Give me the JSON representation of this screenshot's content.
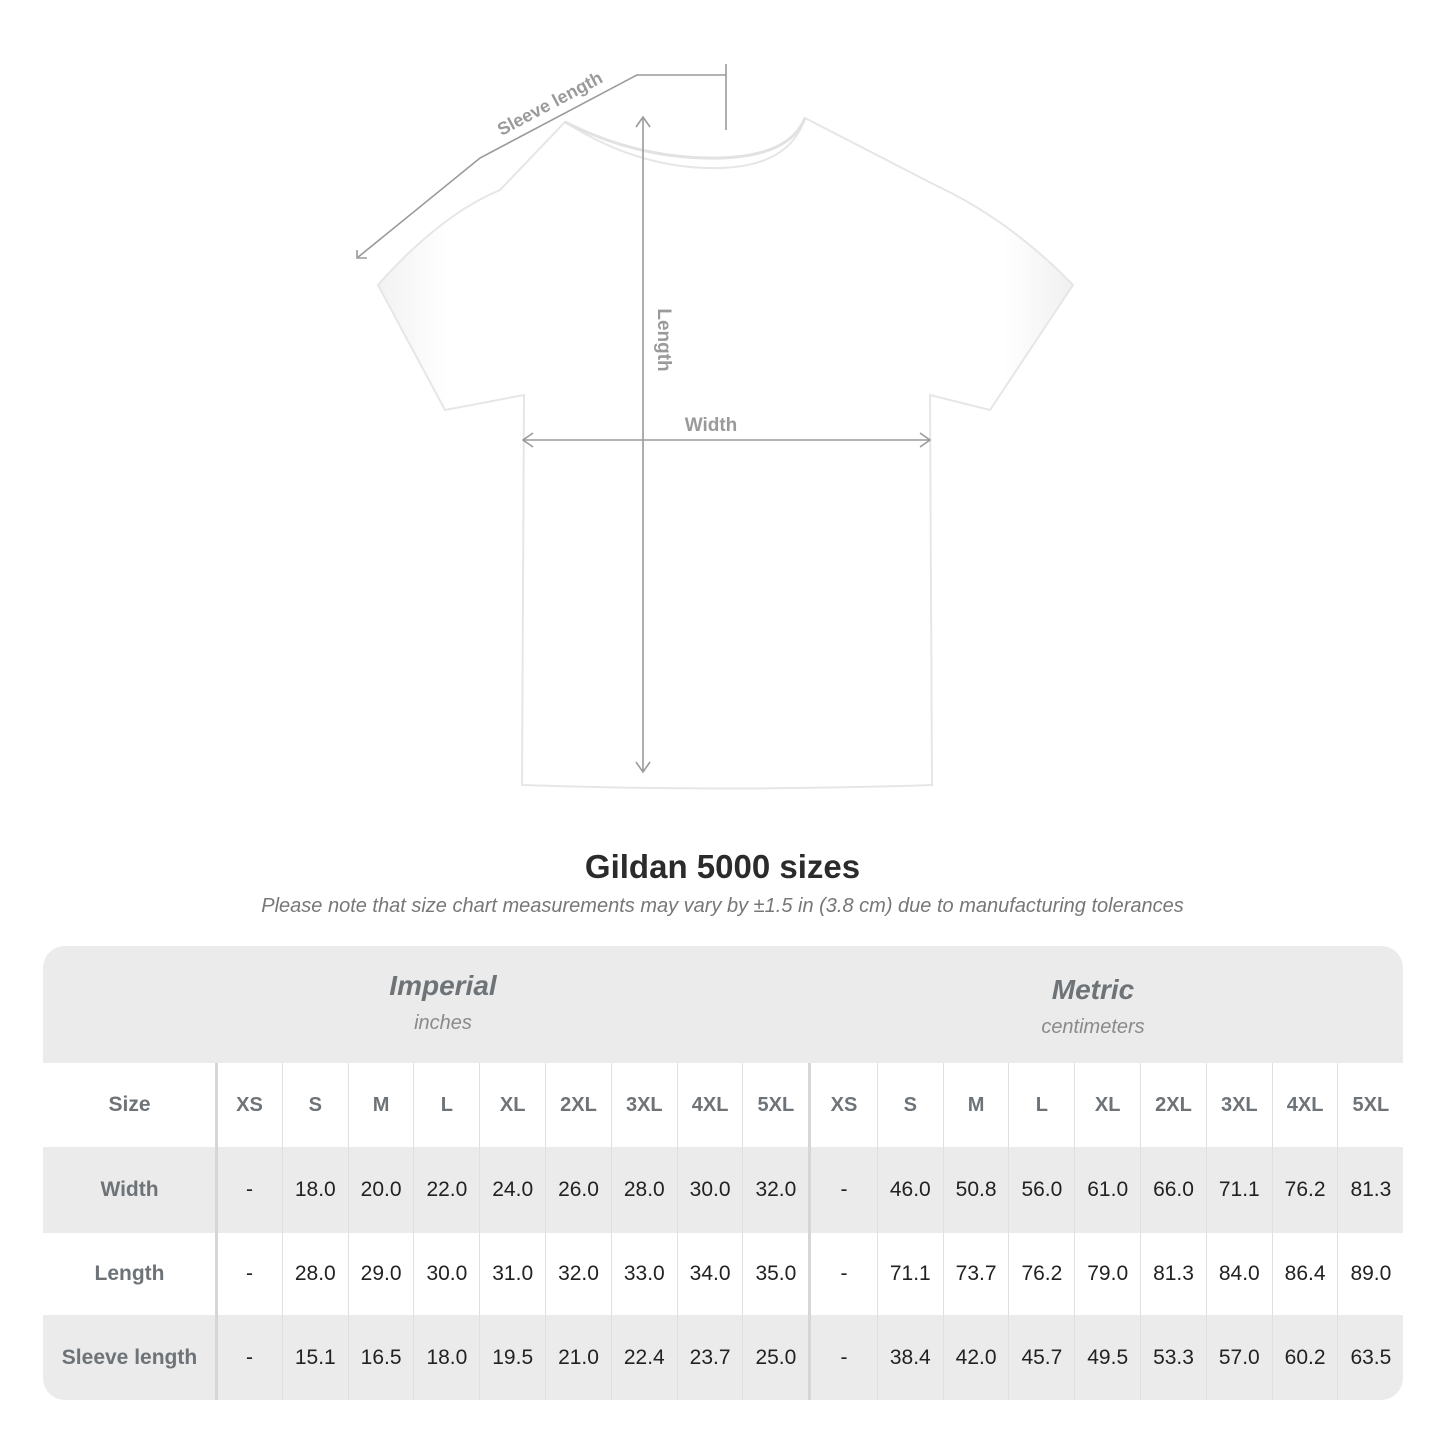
{
  "diagram": {
    "labels": {
      "sleeve": "Sleeve length",
      "length": "Length",
      "width": "Width"
    },
    "colors": {
      "arrow": "#9a9a9a",
      "shirt": "#ffffff",
      "shirt_shade": "#eeeeee"
    }
  },
  "title": "Gildan 5000 sizes",
  "subtitle": "Please note that size chart measurements may vary by ±1.5 in (3.8 cm) due to manufacturing tolerances",
  "table": {
    "imperial": {
      "name": "Imperial",
      "unit": "inches"
    },
    "metric": {
      "name": "Metric",
      "unit": "centimeters"
    },
    "size_label": "Size",
    "sizes": [
      "XS",
      "S",
      "M",
      "L",
      "XL",
      "2XL",
      "3XL",
      "4XL",
      "5XL"
    ],
    "rows": [
      {
        "label": "Width",
        "imperial": [
          "-",
          "18.0",
          "20.0",
          "22.0",
          "24.0",
          "26.0",
          "28.0",
          "30.0",
          "32.0"
        ],
        "metric": [
          "-",
          "46.0",
          "50.8",
          "56.0",
          "61.0",
          "66.0",
          "71.1",
          "76.2",
          "81.3"
        ]
      },
      {
        "label": "Length",
        "imperial": [
          "-",
          "28.0",
          "29.0",
          "30.0",
          "31.0",
          "32.0",
          "33.0",
          "34.0",
          "35.0"
        ],
        "metric": [
          "-",
          "71.1",
          "73.7",
          "76.2",
          "79.0",
          "81.3",
          "84.0",
          "86.4",
          "89.0"
        ]
      },
      {
        "label": "Sleeve length",
        "imperial": [
          "-",
          "15.1",
          "16.5",
          "18.0",
          "19.5",
          "21.0",
          "22.4",
          "23.7",
          "25.0"
        ],
        "metric": [
          "-",
          "38.4",
          "42.0",
          "45.7",
          "49.5",
          "53.3",
          "57.0",
          "60.2",
          "63.5"
        ]
      }
    ]
  }
}
